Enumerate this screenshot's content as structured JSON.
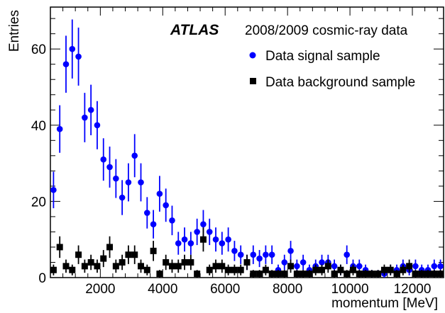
{
  "chart_data": {
    "type": "scatter",
    "title": "",
    "xlabel": "momentum [MeV]",
    "ylabel": "Entries",
    "xlim": [
      400,
      13000
    ],
    "ylim": [
      0,
      71
    ],
    "x_ticks": [
      2000,
      4000,
      6000,
      8000,
      10000,
      12000
    ],
    "y_ticks": [
      0,
      20,
      40,
      60
    ],
    "grid": false,
    "experiment_label": "ATLAS",
    "dataset_label": "2008/2009 cosmic-ray data",
    "legend_position": "top-right",
    "series": [
      {
        "name": "Data signal sample",
        "marker": "circle",
        "color": "#0000ff",
        "x": [
          500,
          700,
          900,
          1100,
          1300,
          1500,
          1700,
          1900,
          2100,
          2300,
          2500,
          2700,
          2900,
          3100,
          3300,
          3500,
          3700,
          3900,
          4100,
          4300,
          4500,
          4700,
          4900,
          5100,
          5300,
          5500,
          5700,
          5900,
          6100,
          6300,
          6500,
          6700,
          6900,
          7100,
          7300,
          7500,
          7700,
          7900,
          8100,
          8300,
          8500,
          8700,
          8900,
          9100,
          9300,
          9500,
          9700,
          9900,
          10100,
          10300,
          10500,
          10700,
          10900,
          11100,
          11300,
          11500,
          11700,
          11900,
          12100,
          12300,
          12500,
          12700,
          12900
        ],
        "y": [
          23,
          39,
          56,
          60,
          58,
          42,
          44,
          40,
          31,
          29,
          26,
          21,
          25,
          32,
          25,
          17,
          14,
          22,
          19,
          15,
          9,
          10,
          9,
          12,
          14,
          12,
          10,
          9,
          10,
          7,
          6,
          4,
          6,
          5,
          6,
          6,
          2,
          4,
          7,
          3,
          4,
          2,
          3,
          4,
          4,
          3,
          2,
          6,
          3,
          3,
          2,
          1,
          1,
          1,
          2,
          2,
          3,
          2,
          3,
          2,
          2,
          3,
          3
        ]
      },
      {
        "name": "Data background sample",
        "marker": "square",
        "color": "#000000",
        "x": [
          500,
          700,
          900,
          1100,
          1300,
          1500,
          1700,
          1900,
          2100,
          2300,
          2500,
          2700,
          2900,
          3100,
          3300,
          3500,
          3700,
          3900,
          4100,
          4300,
          4500,
          4700,
          4900,
          5100,
          5300,
          5500,
          5700,
          5900,
          6100,
          6300,
          6500,
          6700,
          6900,
          7100,
          7300,
          7500,
          7700,
          7900,
          8100,
          8300,
          8500,
          8700,
          8900,
          9100,
          9300,
          9500,
          9700,
          9900,
          10100,
          10300,
          10500,
          10700,
          10900,
          11100,
          11300,
          11500,
          11700,
          11900,
          12100,
          12300,
          12500,
          12700,
          12900
        ],
        "y": [
          2,
          8,
          3,
          2,
          6,
          3,
          4,
          3,
          5,
          8,
          3,
          4,
          6,
          6,
          3,
          2,
          7,
          1,
          4,
          3,
          3,
          4,
          4,
          1,
          10,
          2,
          3,
          3,
          2,
          2,
          2,
          4,
          1,
          1,
          2,
          1,
          1,
          1,
          3,
          1,
          1,
          1,
          2,
          2,
          3,
          1,
          2,
          1,
          2,
          1,
          1,
          1,
          1,
          2,
          2,
          1,
          2,
          3,
          1,
          1,
          1,
          1,
          1
        ]
      }
    ]
  }
}
